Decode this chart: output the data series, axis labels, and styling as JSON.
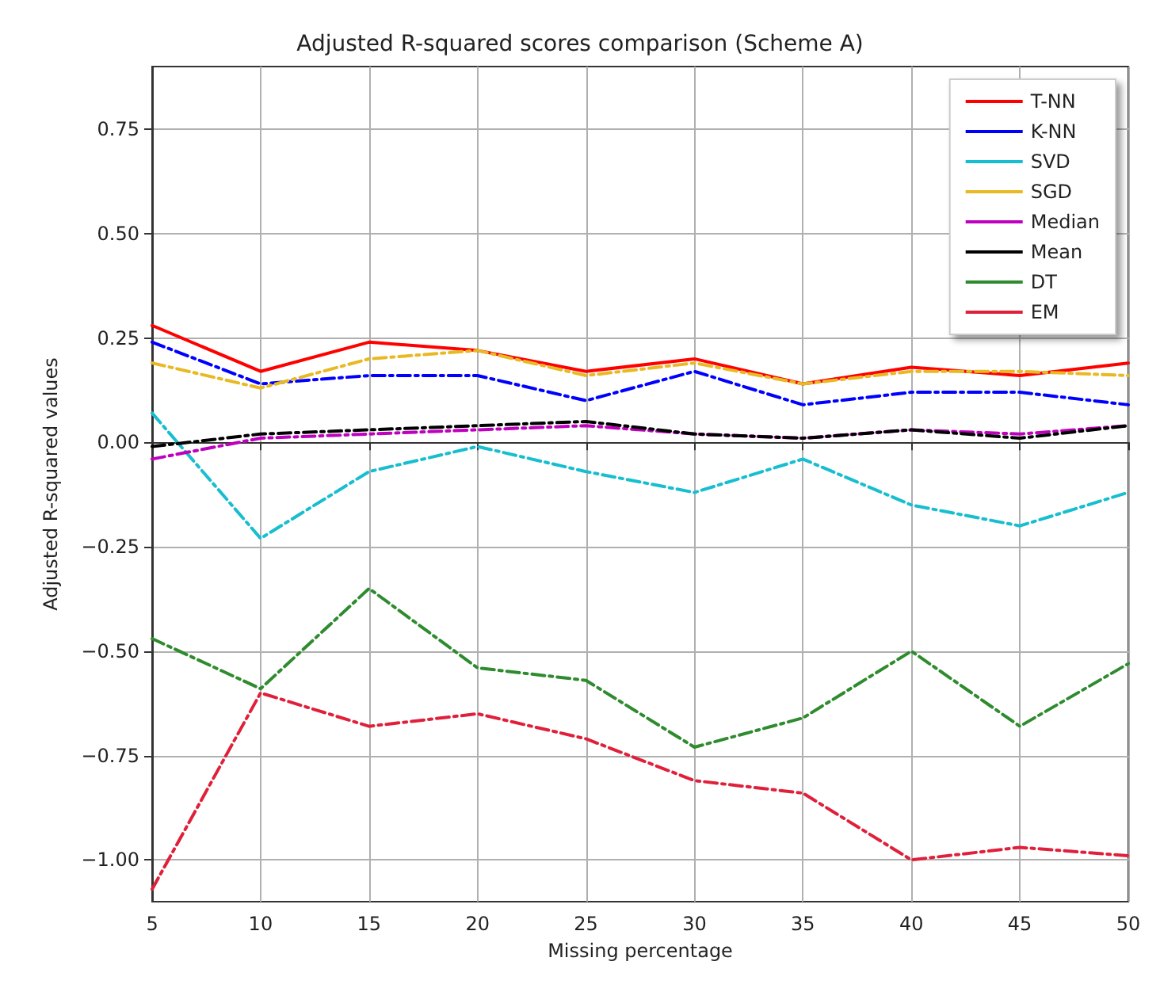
{
  "chart_data": {
    "type": "line",
    "title": "Adjusted R-squared scores comparison (Scheme A)",
    "xlabel": "Missing percentage",
    "ylabel": "Adjusted R-squared values",
    "x": [
      5,
      10,
      15,
      20,
      25,
      30,
      35,
      40,
      45,
      50
    ],
    "xlim": [
      5,
      50
    ],
    "xticks": [
      5,
      10,
      15,
      20,
      25,
      30,
      35,
      40,
      45,
      50
    ],
    "ylim": [
      -1.1,
      0.9
    ],
    "yticks": [
      {
        "value": -1,
        "label": "−1.00"
      },
      {
        "value": -0.75,
        "label": "−0.75"
      },
      {
        "value": -0.5,
        "label": "−0.50"
      },
      {
        "value": -0.25,
        "label": "−0.25"
      },
      {
        "value": 0,
        "label": "0.00"
      },
      {
        "value": 0.25,
        "label": "0.25"
      },
      {
        "value": 0.5,
        "label": "0.50"
      },
      {
        "value": 0.75,
        "label": "0.75"
      }
    ],
    "grid": true,
    "legend": "top right",
    "marker": "none",
    "series": [
      {
        "name": "T-NN",
        "color": "#ff0000",
        "line_style": "solid",
        "values": [
          0.28,
          0.17,
          0.24,
          0.22,
          0.17,
          0.2,
          0.14,
          0.18,
          0.16,
          0.19
        ]
      },
      {
        "name": "K-NN",
        "color": "#0000ff",
        "line_style": "dashed",
        "values": [
          0.24,
          0.14,
          0.16,
          0.16,
          0.1,
          0.17,
          0.09,
          0.12,
          0.12,
          0.09
        ]
      },
      {
        "name": "SVD",
        "color": "#17becf",
        "line_style": "dashed",
        "values": [
          0.07,
          -0.23,
          -0.07,
          -0.01,
          -0.07,
          -0.12,
          -0.04,
          -0.15,
          -0.2,
          -0.12
        ]
      },
      {
        "name": "SGD",
        "color": "#e8b923",
        "line_style": "dashed",
        "values": [
          0.19,
          0.13,
          0.2,
          0.22,
          0.16,
          0.19,
          0.14,
          0.17,
          0.17,
          0.16
        ]
      },
      {
        "name": "Median",
        "color": "#bf00bf",
        "line_style": "dashed",
        "values": [
          -0.04,
          0.01,
          0.02,
          0.03,
          0.04,
          0.02,
          0.01,
          0.03,
          0.02,
          0.04
        ]
      },
      {
        "name": "Mean",
        "color": "#000000",
        "line_style": "dashed",
        "values": [
          -0.01,
          0.02,
          0.03,
          0.04,
          0.05,
          0.02,
          0.01,
          0.03,
          0.01,
          0.04
        ]
      },
      {
        "name": "DT",
        "color": "#2e8b2e",
        "line_style": "dashed",
        "values": [
          -0.47,
          -0.59,
          -0.35,
          -0.54,
          -0.57,
          -0.73,
          -0.66,
          -0.5,
          -0.68,
          -0.53
        ]
      },
      {
        "name": "EM",
        "color": "#e0203a",
        "line_style": "dashed",
        "values": [
          -1.07,
          -0.6,
          -0.68,
          -0.65,
          -0.71,
          -0.81,
          -0.84,
          -1.0,
          -0.97,
          -0.99
        ]
      }
    ]
  }
}
